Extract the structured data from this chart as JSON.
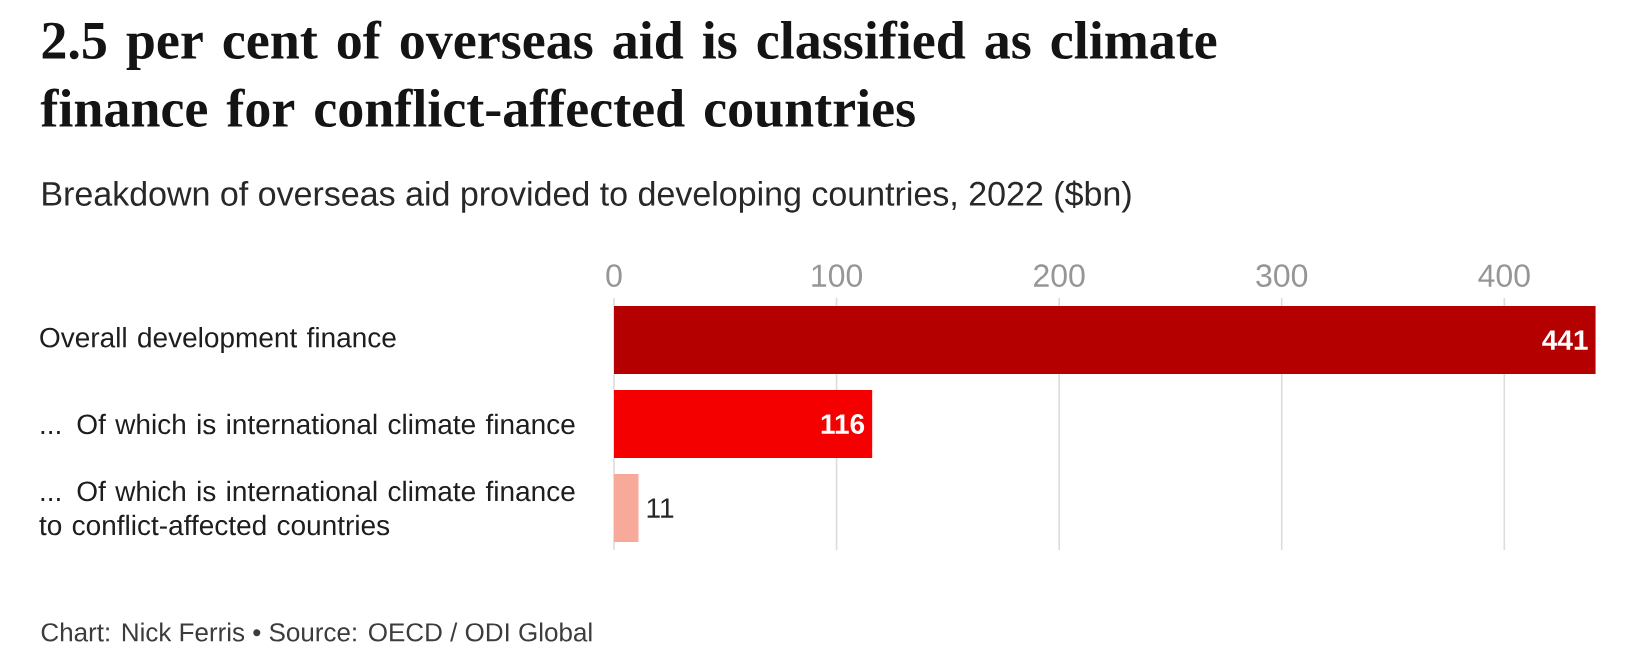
{
  "chart_data": {
    "type": "bar",
    "orientation": "horizontal",
    "title": "2.5 per cent of overseas aid is classified as climate finance for conflict-affected countries",
    "subtitle": "Breakdown of overseas aid provided to developing countries, 2022 ($bn)",
    "categories": [
      "Overall development finance",
      "... Of which is international climate finance",
      "... Of which is international climate finance to conflict-affected countries"
    ],
    "values": [
      441,
      116,
      11
    ],
    "colors": [
      "#b50000",
      "#f50000",
      "#f7a99a"
    ],
    "xlim": [
      0,
      443
    ],
    "xticks": [
      0,
      100,
      200,
      300,
      400
    ],
    "grid": "x",
    "data_labels": true,
    "annotations": [
      "Chart: Nick Ferris • Source: OECD / ODI Global"
    ]
  }
}
